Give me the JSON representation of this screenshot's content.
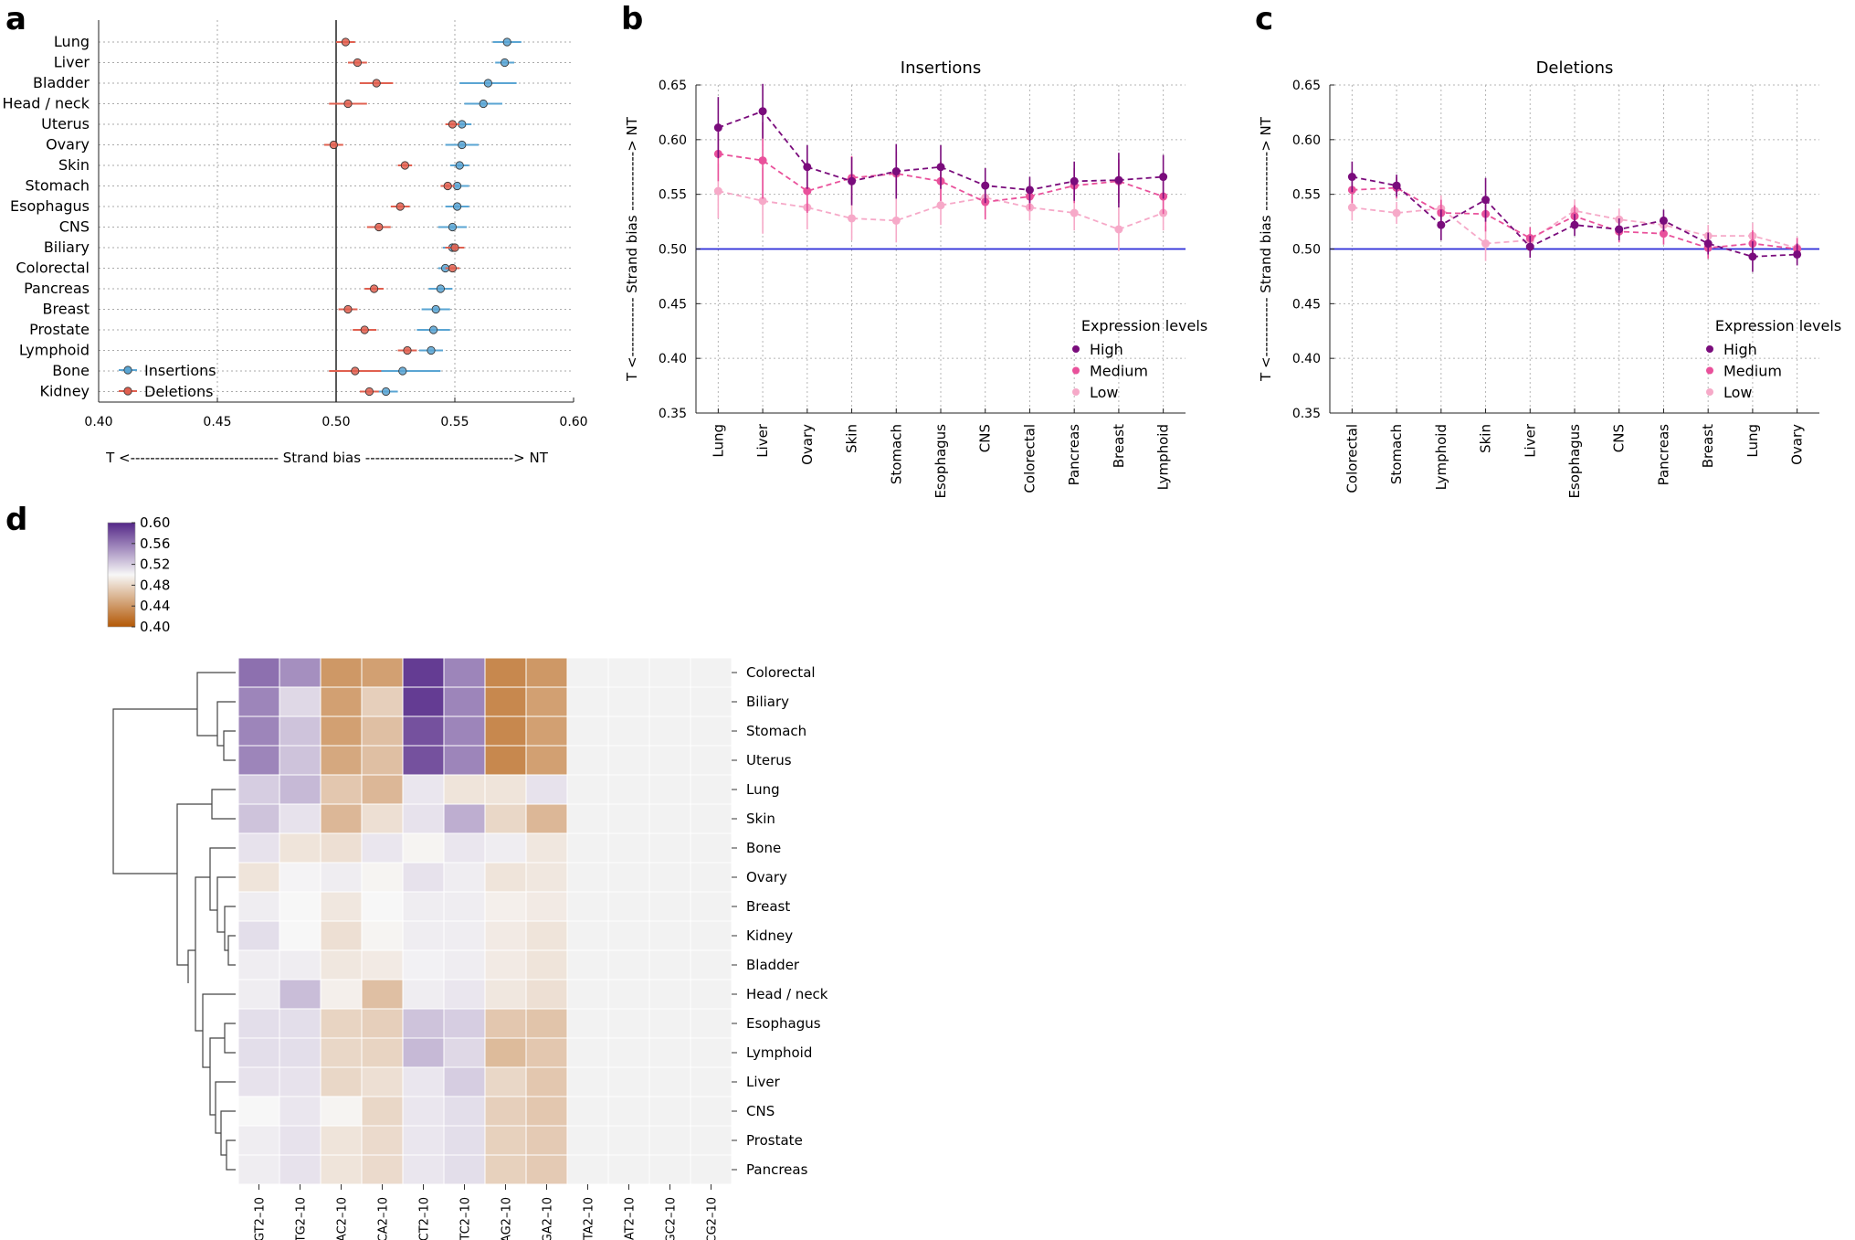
{
  "panel_letters": {
    "a": "a",
    "b": "b",
    "c": "c",
    "d": "d"
  },
  "colors": {
    "insertions": "#5aa5d3",
    "deletions": "#e06050",
    "high": "#7a0c7c",
    "medium": "#e9519b",
    "low": "#f6a9c8",
    "reference_line": "#2a2ad8",
    "heat_low": "#b35806",
    "heat_mid": "#f7f7f7",
    "heat_high": "#542788",
    "heat_na": "#f2f2f2"
  },
  "chart_data": [
    {
      "panel": "a",
      "type": "scatter",
      "orientation": "horizontal-dot",
      "title": "",
      "xlabel": "T <------------------------------ Strand bias ------------------------------> NT",
      "xlim": [
        0.4,
        0.6
      ],
      "xticks": [
        "0.40",
        "0.45",
        "0.50",
        "0.55",
        "0.60"
      ],
      "reference_x": 0.5,
      "categories": [
        "Lung",
        "Liver",
        "Bladder",
        "Head / neck",
        "Uterus",
        "Ovary",
        "Skin",
        "Stomach",
        "Esophagus",
        "CNS",
        "Biliary",
        "Colorectal",
        "Pancreas",
        "Breast",
        "Prostate",
        "Lymphoid",
        "Bone",
        "Kidney"
      ],
      "legend": "bottom-left",
      "series": [
        {
          "name": "Insertions",
          "values": [
            0.572,
            0.571,
            0.564,
            0.562,
            0.553,
            0.553,
            0.552,
            0.551,
            0.551,
            0.549,
            0.549,
            0.546,
            0.544,
            0.542,
            0.541,
            0.54,
            0.528,
            0.521
          ],
          "err": [
            0.006,
            0.004,
            0.012,
            0.008,
            0.004,
            0.007,
            0.004,
            0.005,
            0.005,
            0.006,
            0.004,
            0.003,
            0.005,
            0.006,
            0.007,
            0.005,
            0.016,
            0.005
          ]
        },
        {
          "name": "Deletions",
          "values": [
            0.504,
            0.509,
            0.517,
            0.505,
            0.549,
            0.499,
            0.529,
            0.547,
            0.527,
            0.518,
            0.55,
            0.549,
            0.516,
            0.505,
            0.512,
            0.53,
            0.508,
            0.514
          ],
          "err": [
            0.004,
            0.004,
            0.007,
            0.008,
            0.003,
            0.004,
            0.003,
            0.003,
            0.004,
            0.005,
            0.004,
            0.003,
            0.004,
            0.004,
            0.005,
            0.004,
            0.011,
            0.004
          ]
        }
      ]
    },
    {
      "panel": "b",
      "type": "line",
      "title": "Insertions",
      "ylabel": "T <------------ Strand bias ------------> NT",
      "ylim": [
        0.35,
        0.65
      ],
      "yticks": [
        "0.35",
        "0.40",
        "0.45",
        "0.50",
        "0.55",
        "0.60",
        "0.65"
      ],
      "reference_y": 0.5,
      "categories": [
        "Lung",
        "Liver",
        "Ovary",
        "Skin",
        "Stomach",
        "Esophagus",
        "CNS",
        "Colorectal",
        "Pancreas",
        "Breast",
        "Lymphoid"
      ],
      "legend_title": "Expression levels",
      "legend": "bottom-right",
      "series": [
        {
          "name": "High",
          "values": [
            0.611,
            0.626,
            0.575,
            0.562,
            0.571,
            0.575,
            0.558,
            0.554,
            0.562,
            0.563,
            0.566
          ],
          "err": [
            0.028,
            0.025,
            0.02,
            0.022,
            0.025,
            0.02,
            0.016,
            0.012,
            0.018,
            0.025,
            0.02
          ]
        },
        {
          "name": "Medium",
          "values": [
            0.587,
            0.581,
            0.553,
            0.565,
            0.569,
            0.562,
            0.543,
            0.548,
            0.558,
            0.562,
            0.548
          ],
          "err": [
            0.025,
            0.035,
            0.02,
            0.02,
            0.02,
            0.018,
            0.016,
            0.012,
            0.016,
            0.02,
            0.016
          ]
        },
        {
          "name": "Low",
          "values": [
            0.553,
            0.544,
            0.538,
            0.528,
            0.526,
            0.54,
            0.547,
            0.538,
            0.533,
            0.518,
            0.533
          ],
          "err": [
            0.025,
            0.03,
            0.02,
            0.02,
            0.02,
            0.018,
            0.016,
            0.012,
            0.016,
            0.02,
            0.016
          ]
        }
      ]
    },
    {
      "panel": "c",
      "type": "line",
      "title": "Deletions",
      "ylabel": "T <------------ Strand bias ------------> NT",
      "ylim": [
        0.35,
        0.65
      ],
      "yticks": [
        "0.35",
        "0.40",
        "0.45",
        "0.50",
        "0.55",
        "0.60",
        "0.65"
      ],
      "reference_y": 0.5,
      "categories": [
        "Colorectal",
        "Stomach",
        "Lymphoid",
        "Skin",
        "Liver",
        "Esophagus",
        "CNS",
        "Pancreas",
        "Breast",
        "Lung",
        "Ovary"
      ],
      "legend_title": "Expression levels",
      "legend": "bottom-right",
      "series": [
        {
          "name": "High",
          "values": [
            0.566,
            0.558,
            0.522,
            0.545,
            0.502,
            0.522,
            0.518,
            0.526,
            0.505,
            0.493,
            0.495
          ],
          "err": [
            0.014,
            0.01,
            0.014,
            0.02,
            0.01,
            0.01,
            0.01,
            0.01,
            0.01,
            0.014,
            0.01
          ]
        },
        {
          "name": "Medium",
          "values": [
            0.554,
            0.556,
            0.533,
            0.532,
            0.51,
            0.53,
            0.516,
            0.514,
            0.501,
            0.505,
            0.5
          ],
          "err": [
            0.012,
            0.01,
            0.012,
            0.016,
            0.01,
            0.01,
            0.01,
            0.01,
            0.01,
            0.012,
            0.01
          ]
        },
        {
          "name": "Low",
          "values": [
            0.538,
            0.533,
            0.537,
            0.505,
            0.508,
            0.535,
            0.527,
            0.522,
            0.512,
            0.512,
            0.501
          ],
          "err": [
            0.012,
            0.01,
            0.012,
            0.016,
            0.01,
            0.01,
            0.01,
            0.01,
            0.01,
            0.012,
            0.01
          ]
        }
      ]
    },
    {
      "panel": "d",
      "type": "heatmap",
      "title": "",
      "colorbar_ticks": [
        "0.60",
        "0.56",
        "0.52",
        "0.48",
        "0.44",
        "0.40"
      ],
      "colorbar_range": [
        0.4,
        0.6
      ],
      "rows": [
        "Colorectal",
        "Biliary",
        "Stomach",
        "Uterus",
        "Lung",
        "Skin",
        "Bone",
        "Ovary",
        "Breast",
        "Kidney",
        "Bladder",
        "Head / neck",
        "Esophagus",
        "Lymphoid",
        "Liver",
        "CNS",
        "Prostate",
        "Pancreas"
      ],
      "columns": [
        "GT2–10",
        "TG2–10",
        "AC2–10",
        "CA2–10",
        "CT2–10",
        "TC2–10",
        "AG2–10",
        "GA2–10",
        "TA2–10",
        "AT2–10",
        "GC2–10",
        "CG2–10"
      ],
      "values": [
        [
          0.565,
          0.55,
          0.44,
          0.445,
          0.59,
          0.555,
          0.43,
          0.44,
          null,
          null,
          null,
          null
        ],
        [
          0.555,
          0.515,
          0.445,
          0.475,
          0.59,
          0.555,
          0.43,
          0.445,
          null,
          null,
          null,
          null
        ],
        [
          0.555,
          0.525,
          0.445,
          0.465,
          0.58,
          0.555,
          0.43,
          0.445,
          null,
          null,
          null,
          null
        ],
        [
          0.555,
          0.525,
          0.45,
          0.465,
          0.58,
          0.555,
          0.43,
          0.445,
          null,
          null,
          null,
          null
        ],
        [
          0.52,
          0.53,
          0.47,
          0.46,
          0.508,
          0.488,
          0.488,
          0.51,
          null,
          null,
          null,
          null
        ],
        [
          0.525,
          0.51,
          0.46,
          0.485,
          0.51,
          0.535,
          0.48,
          0.46,
          null,
          null,
          null,
          null
        ],
        [
          0.51,
          0.488,
          0.485,
          0.508,
          0.498,
          0.508,
          0.505,
          0.49,
          null,
          null,
          null,
          null
        ],
        [
          0.488,
          0.502,
          0.505,
          0.498,
          0.51,
          0.505,
          0.488,
          0.49,
          null,
          null,
          null,
          null
        ],
        [
          0.505,
          0.5,
          0.49,
          0.5,
          0.505,
          0.505,
          0.495,
          0.492,
          null,
          null,
          null,
          null
        ],
        [
          0.512,
          0.5,
          0.485,
          0.498,
          0.505,
          0.505,
          0.492,
          0.488,
          null,
          null,
          null,
          null
        ],
        [
          0.505,
          0.505,
          0.49,
          0.492,
          0.503,
          0.505,
          0.492,
          0.488,
          null,
          null,
          null,
          null
        ],
        [
          0.505,
          0.528,
          0.495,
          0.465,
          0.505,
          0.508,
          0.49,
          0.485,
          null,
          null,
          null,
          null
        ],
        [
          0.512,
          0.512,
          0.478,
          0.475,
          0.525,
          0.52,
          0.47,
          0.468,
          null,
          null,
          null,
          null
        ],
        [
          0.512,
          0.512,
          0.48,
          0.478,
          0.53,
          0.515,
          0.462,
          0.47,
          null,
          null,
          null,
          null
        ],
        [
          0.51,
          0.51,
          0.48,
          0.485,
          0.508,
          0.52,
          0.48,
          0.47,
          null,
          null,
          null,
          null
        ],
        [
          0.5,
          0.508,
          0.498,
          0.48,
          0.508,
          0.512,
          0.475,
          0.47,
          null,
          null,
          null,
          null
        ],
        [
          0.505,
          0.51,
          0.488,
          0.482,
          0.508,
          0.512,
          0.476,
          0.472,
          null,
          null,
          null,
          null
        ],
        [
          0.505,
          0.51,
          0.488,
          0.482,
          0.508,
          0.512,
          0.476,
          0.472,
          null,
          null,
          null,
          null
        ]
      ],
      "dendrogram": "rows-left"
    }
  ]
}
